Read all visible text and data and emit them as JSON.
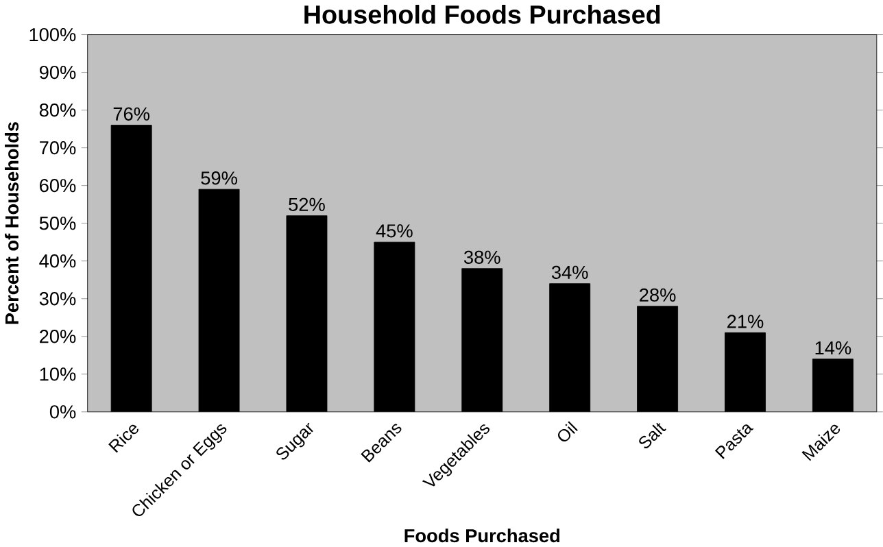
{
  "chart_data": {
    "type": "bar",
    "title": "Household Foods Purchased",
    "xlabel": "Foods Purchased",
    "ylabel": "Percent of Households",
    "categories": [
      "Rice",
      "Chicken or Eggs",
      "Sugar",
      "Beans",
      "Vegetables",
      "Oil",
      "Salt",
      "Pasta",
      "Maize"
    ],
    "values": [
      76,
      59,
      52,
      45,
      38,
      34,
      28,
      21,
      14
    ],
    "value_labels": [
      "76%",
      "59%",
      "52%",
      "45%",
      "38%",
      "34%",
      "28%",
      "21%",
      "14%"
    ],
    "color": "#000000",
    "ylim": [
      0,
      100
    ],
    "yticks": [
      {
        "value": 0,
        "label": "0%"
      },
      {
        "value": 10,
        "label": "10%"
      },
      {
        "value": 20,
        "label": "20%"
      },
      {
        "value": 30,
        "label": "30%"
      },
      {
        "value": 40,
        "label": "40%"
      },
      {
        "value": 50,
        "label": "50%"
      },
      {
        "value": 60,
        "label": "60%"
      },
      {
        "value": 70,
        "label": "70%"
      },
      {
        "value": 80,
        "label": "80%"
      },
      {
        "value": 90,
        "label": "90%"
      },
      {
        "value": 100,
        "label": "100%"
      }
    ],
    "grid": false
  }
}
